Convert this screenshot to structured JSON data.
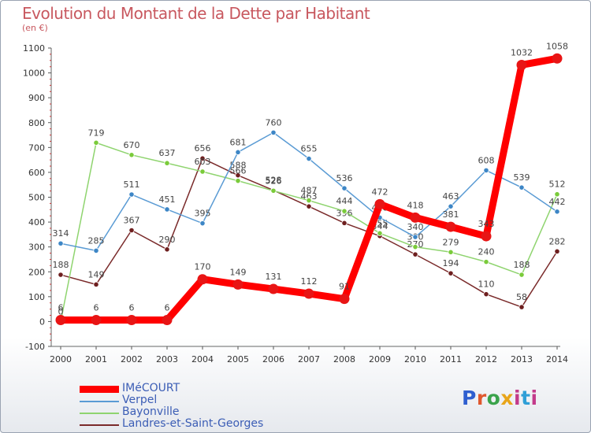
{
  "header": {
    "title": "Evolution du Montant de la Dette par Habitant",
    "unit": "(en €)"
  },
  "logo": {
    "text": "Proxiti",
    "letters": [
      "P",
      "r",
      "o",
      "x",
      "i",
      "t",
      "i"
    ]
  },
  "chart_data": {
    "type": "line",
    "title": "Evolution du Montant de la Dette par Habitant",
    "ylabel": "(en €)",
    "xlabel": "",
    "ylim": [
      -100,
      1100
    ],
    "yticks": [
      -100,
      0,
      100,
      200,
      300,
      400,
      500,
      600,
      700,
      800,
      900,
      1000,
      1100
    ],
    "ytick_labels": [
      "-100",
      "0",
      "100",
      "200",
      "300",
      "400",
      "500",
      "600",
      "700",
      "800",
      "900",
      "1000",
      "1100"
    ],
    "categories": [
      "2000",
      "2001",
      "2002",
      "2003",
      "2004",
      "2005",
      "2006",
      "2007",
      "2008",
      "2009",
      "2010",
      "2011",
      "2012",
      "2013",
      "2014"
    ],
    "grid": false,
    "legend_position": "bottom-left",
    "series": [
      {
        "name": "Landres-et-Saint-Georges",
        "color": "#7a2a2a",
        "marker": "#6e1f1f",
        "values": [
          188,
          149,
          367,
          290,
          656,
          588,
          528,
          463,
          396,
          344,
          270,
          194,
          110,
          58,
          282
        ],
        "labels": [
          "188",
          "149",
          "367",
          "290",
          "656",
          "588",
          "528",
          "463",
          "396",
          "344",
          "270",
          "194",
          "110",
          "58",
          "282"
        ]
      },
      {
        "name": "Bayonville",
        "color": "#8fd46f",
        "marker": "#7acb3a",
        "values": [
          0,
          719,
          670,
          637,
          603,
          566,
          526,
          487,
          444,
          355,
          300,
          279,
          240,
          188,
          512
        ],
        "labels": [
          "0",
          "719",
          "670",
          "637",
          "603",
          "566",
          "526",
          "487",
          "444",
          "355",
          "300",
          "279",
          "240",
          "188",
          "512"
        ]
      },
      {
        "name": "Verpel",
        "color": "#5a9bd4",
        "marker": "#3d86c6",
        "values": [
          314,
          285,
          511,
          451,
          395,
          681,
          760,
          655,
          536,
          418,
          340,
          463,
          608,
          539,
          442
        ],
        "labels": [
          "314",
          "285",
          "511",
          "451",
          "395",
          "681",
          "760",
          "655",
          "536",
          "418",
          "340",
          "463",
          "608",
          "539",
          "442"
        ]
      },
      {
        "name": "IMéCOURT",
        "color": "#ff0000",
        "marker": "#e81515",
        "values": [
          6,
          6,
          6,
          6,
          170,
          149,
          131,
          112,
          91,
          472,
          418,
          381,
          343,
          1032,
          1058
        ],
        "labels": [
          "6",
          "6",
          "6",
          "6",
          "170",
          "149",
          "131",
          "112",
          "91",
          "472",
          "418",
          "381",
          "343",
          "1032",
          "1058"
        ]
      }
    ],
    "legend": [
      "IMéCOURT",
      "Verpel",
      "Bayonville",
      "Landres-et-Saint-Georges"
    ]
  }
}
